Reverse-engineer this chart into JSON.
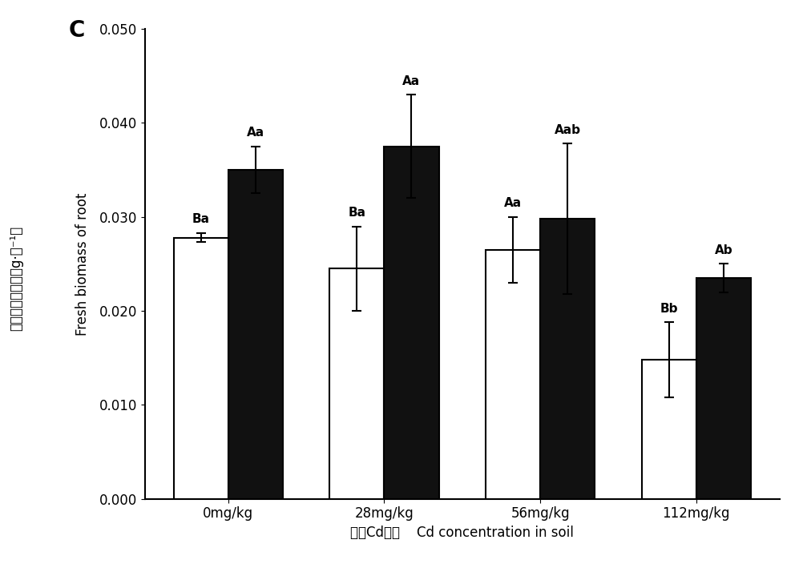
{
  "categories": [
    "0mg/kg",
    "28mg/kg",
    "56mg/kg",
    "112mg/kg"
  ],
  "white_values": [
    0.0278,
    0.0245,
    0.0265,
    0.0148
  ],
  "black_values": [
    0.035,
    0.0375,
    0.0298,
    0.0235
  ],
  "white_errors": [
    0.0005,
    0.0045,
    0.0035,
    0.004
  ],
  "black_errors": [
    0.0025,
    0.0055,
    0.008,
    0.0015
  ],
  "white_labels": [
    "Ba",
    "Ba",
    "Aa",
    "Bb"
  ],
  "black_labels": [
    "Aa",
    "Aa",
    "Aab",
    "Ab"
  ],
  "ylabel_cn": "地下部鲜质量／（g·株⁻¹）",
  "ylabel_en": "Fresh biomass of root",
  "xlabel_cn": "土壭Cd浓度",
  "xlabel_en": "Cd concentration in soil",
  "panel_label": "C",
  "ylim": [
    0.0,
    0.05
  ],
  "yticks": [
    0.0,
    0.01,
    0.02,
    0.03,
    0.04,
    0.05
  ],
  "bar_width": 0.35,
  "white_color": "#ffffff",
  "black_color": "#111111",
  "edge_color": "#000000",
  "tick_fontsize": 12,
  "label_fontsize": 12,
  "sig_fontsize": 11,
  "panel_fontsize": 20
}
